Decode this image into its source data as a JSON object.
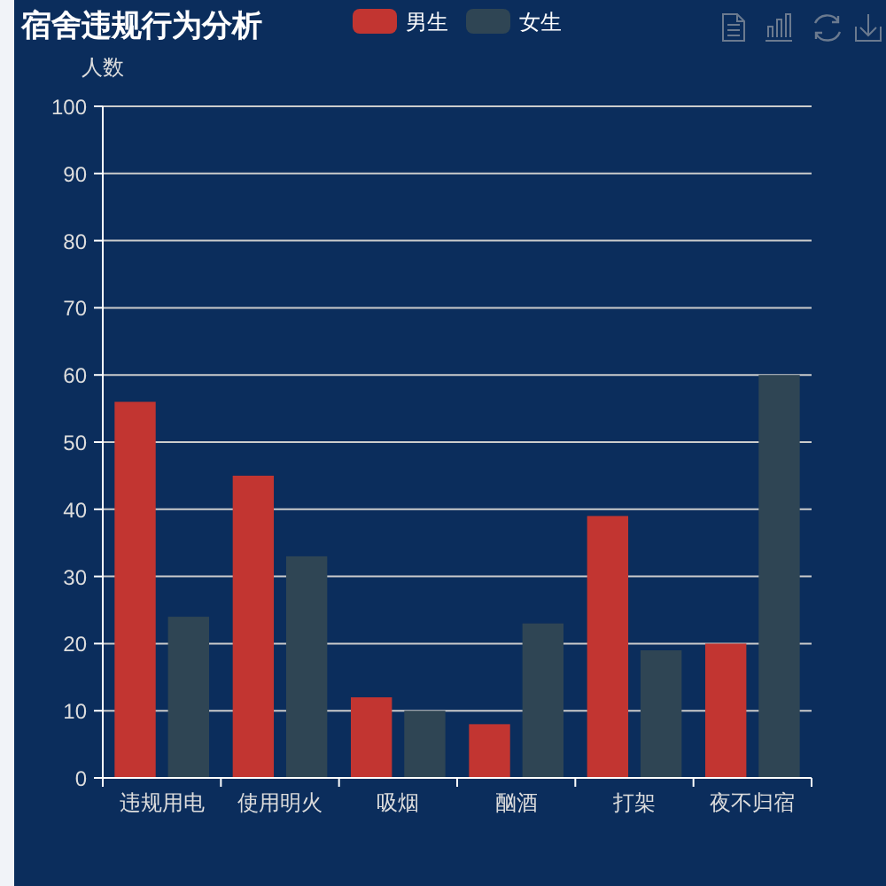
{
  "chart_data": {
    "type": "bar",
    "title": "宿舍违规行为分析",
    "ylabel": "人数",
    "categories": [
      "违规用电",
      "使用明火",
      "吸烟",
      "酗酒",
      "打架",
      "夜不归宿"
    ],
    "series": [
      {
        "name": "男生",
        "color": "#c23531",
        "values": [
          56,
          45,
          12,
          8,
          39,
          20
        ]
      },
      {
        "name": "女生",
        "color": "#2f4554",
        "values": [
          24,
          33,
          10,
          23,
          19,
          60
        ]
      }
    ],
    "ylim": [
      0,
      100
    ],
    "yticks": [
      0,
      10,
      20,
      30,
      40,
      50,
      60,
      70,
      80,
      90,
      100
    ],
    "grid": "y",
    "legend": "top"
  }
}
